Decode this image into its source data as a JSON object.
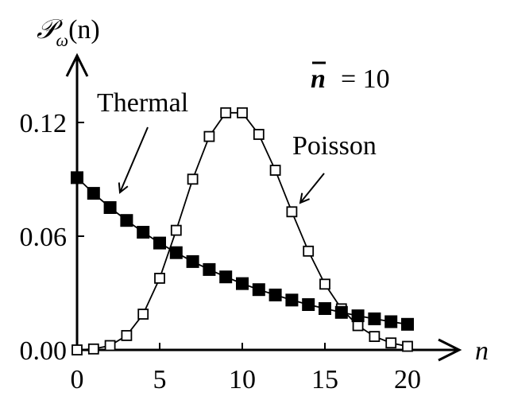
{
  "chart_data": {
    "type": "line",
    "ylabel": "𝒫",
    "ylabel_sub": "ω",
    "ylabel_arg": "(n)",
    "xlabel": "n",
    "annotation": {
      "symbol": "n",
      "text": "= 10"
    },
    "xlim": [
      0,
      20
    ],
    "ylim": [
      0,
      0.12
    ],
    "x_ticks": [
      "0",
      "5",
      "10",
      "15",
      "20"
    ],
    "x_tick_values": [
      0,
      5,
      10,
      15,
      20
    ],
    "y_ticks": [
      "0.00",
      "0.06",
      "0.12"
    ],
    "y_tick_values": [
      0,
      0.06,
      0.12
    ],
    "x": [
      0,
      1,
      2,
      3,
      4,
      5,
      6,
      7,
      8,
      9,
      10,
      11,
      12,
      13,
      14,
      15,
      16,
      17,
      18,
      19,
      20
    ],
    "series": [
      {
        "name": "Thermal",
        "marker": "filled-square",
        "color": "#000000",
        "values": [
          0.0909,
          0.0826,
          0.0751,
          0.0683,
          0.0621,
          0.0564,
          0.0513,
          0.0466,
          0.0424,
          0.0385,
          0.035,
          0.0318,
          0.029,
          0.0263,
          0.0239,
          0.0218,
          0.0198,
          0.018,
          0.0164,
          0.0149,
          0.0135
        ]
      },
      {
        "name": "Poisson",
        "marker": "open-square",
        "color": "#000000",
        "values": [
          0.0,
          0.0005,
          0.0023,
          0.0076,
          0.0189,
          0.0378,
          0.0631,
          0.0901,
          0.1126,
          0.1251,
          0.1251,
          0.1137,
          0.0948,
          0.0729,
          0.0521,
          0.0347,
          0.0217,
          0.0128,
          0.0071,
          0.0037,
          0.0019
        ]
      }
    ]
  }
}
